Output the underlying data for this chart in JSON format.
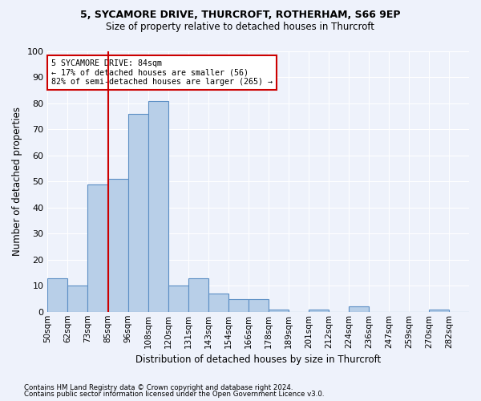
{
  "title1": "5, SYCAMORE DRIVE, THURCROFT, ROTHERHAM, S66 9EP",
  "title2": "Size of property relative to detached houses in Thurcroft",
  "xlabel": "Distribution of detached houses by size in Thurcroft",
  "ylabel": "Number of detached properties",
  "footnote1": "Contains HM Land Registry data © Crown copyright and database right 2024.",
  "footnote2": "Contains public sector information licensed under the Open Government Licence v3.0.",
  "bin_labels": [
    "50sqm",
    "62sqm",
    "73sqm",
    "85sqm",
    "96sqm",
    "108sqm",
    "120sqm",
    "131sqm",
    "143sqm",
    "154sqm",
    "166sqm",
    "178sqm",
    "189sqm",
    "201sqm",
    "212sqm",
    "224sqm",
    "236sqm",
    "247sqm",
    "259sqm",
    "270sqm",
    "282sqm"
  ],
  "bar_values": [
    13,
    10,
    49,
    51,
    76,
    81,
    10,
    13,
    7,
    5,
    5,
    1,
    0,
    1,
    0,
    2,
    0,
    0,
    0,
    1,
    0
  ],
  "bar_color": "#b8cfe8",
  "bar_edge_color": "#5b8ec4",
  "property_bar_index": 3,
  "annotation_text": "5 SYCAMORE DRIVE: 84sqm\n← 17% of detached houses are smaller (56)\n82% of semi-detached houses are larger (265) →",
  "annotation_box_color": "#ffffff",
  "annotation_box_edge": "#cc0000",
  "vline_color": "#cc0000",
  "ylim": [
    0,
    100
  ],
  "yticks": [
    0,
    10,
    20,
    30,
    40,
    50,
    60,
    70,
    80,
    90,
    100
  ],
  "bg_color": "#eef2fb",
  "grid_color": "#ffffff",
  "title1_fontsize": 9,
  "title2_fontsize": 8.5
}
